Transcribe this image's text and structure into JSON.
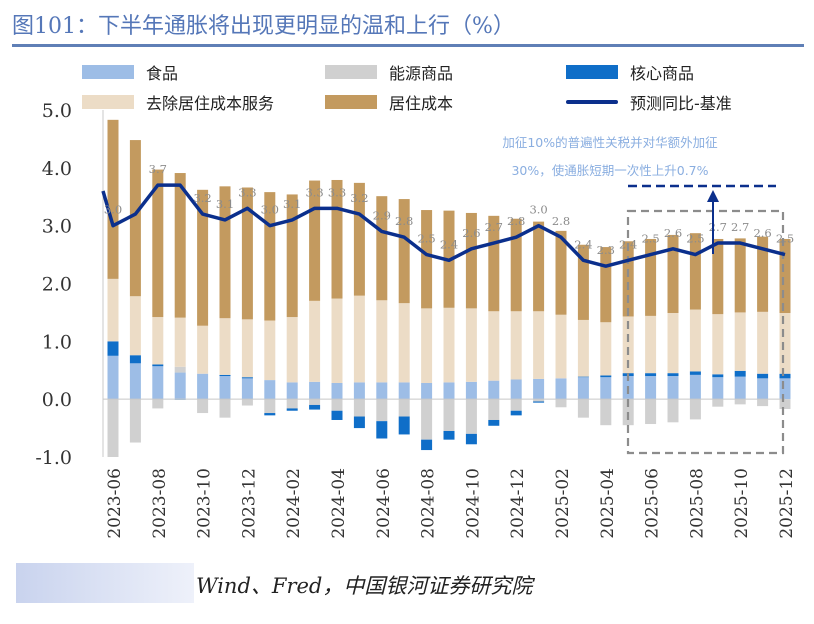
{
  "title": "图101：下半年通胀将出现更明显的温和上行（%）",
  "source": "Wind、Fred，中国银河证券研究院",
  "legend": {
    "food": "食品",
    "energy": "能源商品",
    "core_goods": "核心商品",
    "services_ex_housing": "去除居住成本服务",
    "housing": "居住成本",
    "forecast": "预测同比-基准"
  },
  "annotation": {
    "line1": "加征10%的普遍性关税并对华额外加征",
    "line2": "30%，使通胀短期一次性上升0.7%"
  },
  "chart_data": {
    "type": "bar",
    "stacked": true,
    "x": [
      "2023-06",
      "2023-07",
      "2023-08",
      "2023-09",
      "2023-10",
      "2023-11",
      "2023-12",
      "2024-01",
      "2024-02",
      "2024-03",
      "2024-04",
      "2024-05",
      "2024-06",
      "2024-07",
      "2024-08",
      "2024-09",
      "2024-10",
      "2024-11",
      "2024-12",
      "2025-01",
      "2025-02",
      "2025-03",
      "2025-04",
      "2025-05",
      "2025-06",
      "2025-07",
      "2025-08",
      "2025-09",
      "2025-10",
      "2025-11",
      "2025-12"
    ],
    "xticklabels": [
      "2023-06",
      "2023-08",
      "2023-10",
      "2023-12",
      "2024-02",
      "2024-04",
      "2024-06",
      "2024-08",
      "2024-10",
      "2024-12",
      "2025-02",
      "2025-04",
      "2025-06",
      "2025-08",
      "2025-10",
      "2025-12"
    ],
    "ylim": [
      -1.0,
      5.0
    ],
    "yticks": [
      -1.0,
      0.0,
      1.0,
      2.0,
      3.0,
      4.0,
      5.0
    ],
    "grid": false,
    "series": [
      {
        "name": "食品",
        "color": "#9dbde6",
        "values": [
          0.75,
          0.62,
          0.57,
          0.46,
          0.44,
          0.4,
          0.36,
          0.33,
          0.29,
          0.3,
          0.28,
          0.29,
          0.29,
          0.29,
          0.28,
          0.29,
          0.3,
          0.32,
          0.34,
          0.35,
          0.36,
          0.38,
          0.38,
          0.4,
          0.4,
          0.4,
          0.42,
          0.38,
          0.39,
          0.36,
          0.36
        ]
      },
      {
        "name": "能源商品",
        "color": "#d0d0d0",
        "values": [
          -1.0,
          -0.75,
          -0.16,
          0.1,
          -0.24,
          -0.32,
          -0.11,
          -0.24,
          -0.16,
          -0.1,
          -0.2,
          -0.3,
          -0.38,
          -0.3,
          -0.7,
          -0.55,
          -0.6,
          -0.36,
          -0.2,
          -0.04,
          -0.14,
          -0.32,
          -0.45,
          -0.45,
          -0.43,
          -0.4,
          -0.35,
          -0.13,
          -0.09,
          -0.12,
          -0.17
        ]
      },
      {
        "name": "核心商品",
        "color": "#0f6ec8",
        "values": [
          0.25,
          0.14,
          0.03,
          -0.01,
          0.0,
          0.02,
          0.02,
          -0.04,
          -0.04,
          -0.08,
          -0.16,
          -0.2,
          -0.3,
          -0.31,
          -0.18,
          -0.15,
          -0.18,
          -0.1,
          -0.08,
          -0.02,
          0.0,
          0.01,
          0.03,
          0.05,
          0.05,
          0.05,
          0.06,
          0.05,
          0.1,
          0.08,
          0.08
        ]
      },
      {
        "name": "去除居住成本服务",
        "color": "#ecdcc6",
        "values": [
          1.08,
          1.02,
          0.82,
          0.85,
          0.83,
          0.98,
          1.0,
          1.03,
          1.13,
          1.4,
          1.46,
          1.5,
          1.42,
          1.37,
          1.29,
          1.29,
          1.27,
          1.2,
          1.18,
          1.17,
          1.1,
          0.98,
          0.92,
          0.98,
          0.99,
          1.04,
          1.07,
          1.04,
          1.01,
          1.07,
          1.05
        ]
      },
      {
        "name": "居住成本",
        "color": "#c39a5f",
        "values": [
          2.75,
          2.7,
          2.55,
          2.5,
          2.35,
          2.28,
          2.28,
          2.22,
          2.12,
          2.08,
          2.05,
          1.95,
          1.8,
          1.8,
          1.7,
          1.68,
          1.65,
          1.65,
          1.6,
          1.55,
          1.45,
          1.3,
          1.3,
          1.3,
          1.33,
          1.35,
          1.32,
          1.3,
          1.28,
          1.3,
          1.28
        ]
      }
    ],
    "line": {
      "name": "预测同比-基准",
      "color": "#0b2f8c",
      "values": [
        3.0,
        3.2,
        3.7,
        3.7,
        3.2,
        3.1,
        3.3,
        3.0,
        3.1,
        3.3,
        3.3,
        3.2,
        2.9,
        2.8,
        2.5,
        2.4,
        2.6,
        2.7,
        2.8,
        3.0,
        2.8,
        2.4,
        2.3,
        2.4,
        2.5,
        2.6,
        2.5,
        2.7,
        2.7,
        2.6,
        2.5
      ],
      "labels": [
        "3.0",
        "",
        "3.7",
        "",
        "3.2",
        "3.1",
        "3.3",
        "3.0",
        "3.1",
        "3.3",
        "3.3",
        "3.2",
        "2.9",
        "2.8",
        "2.5",
        "2.4",
        "2.6",
        "2.7",
        "2.8",
        "3.0",
        "2.8",
        "2.4",
        "2.3",
        "2.4",
        "2.5",
        "2.6",
        "2.5",
        "2.7",
        "2.7",
        "2.6",
        "2.5"
      ]
    }
  }
}
